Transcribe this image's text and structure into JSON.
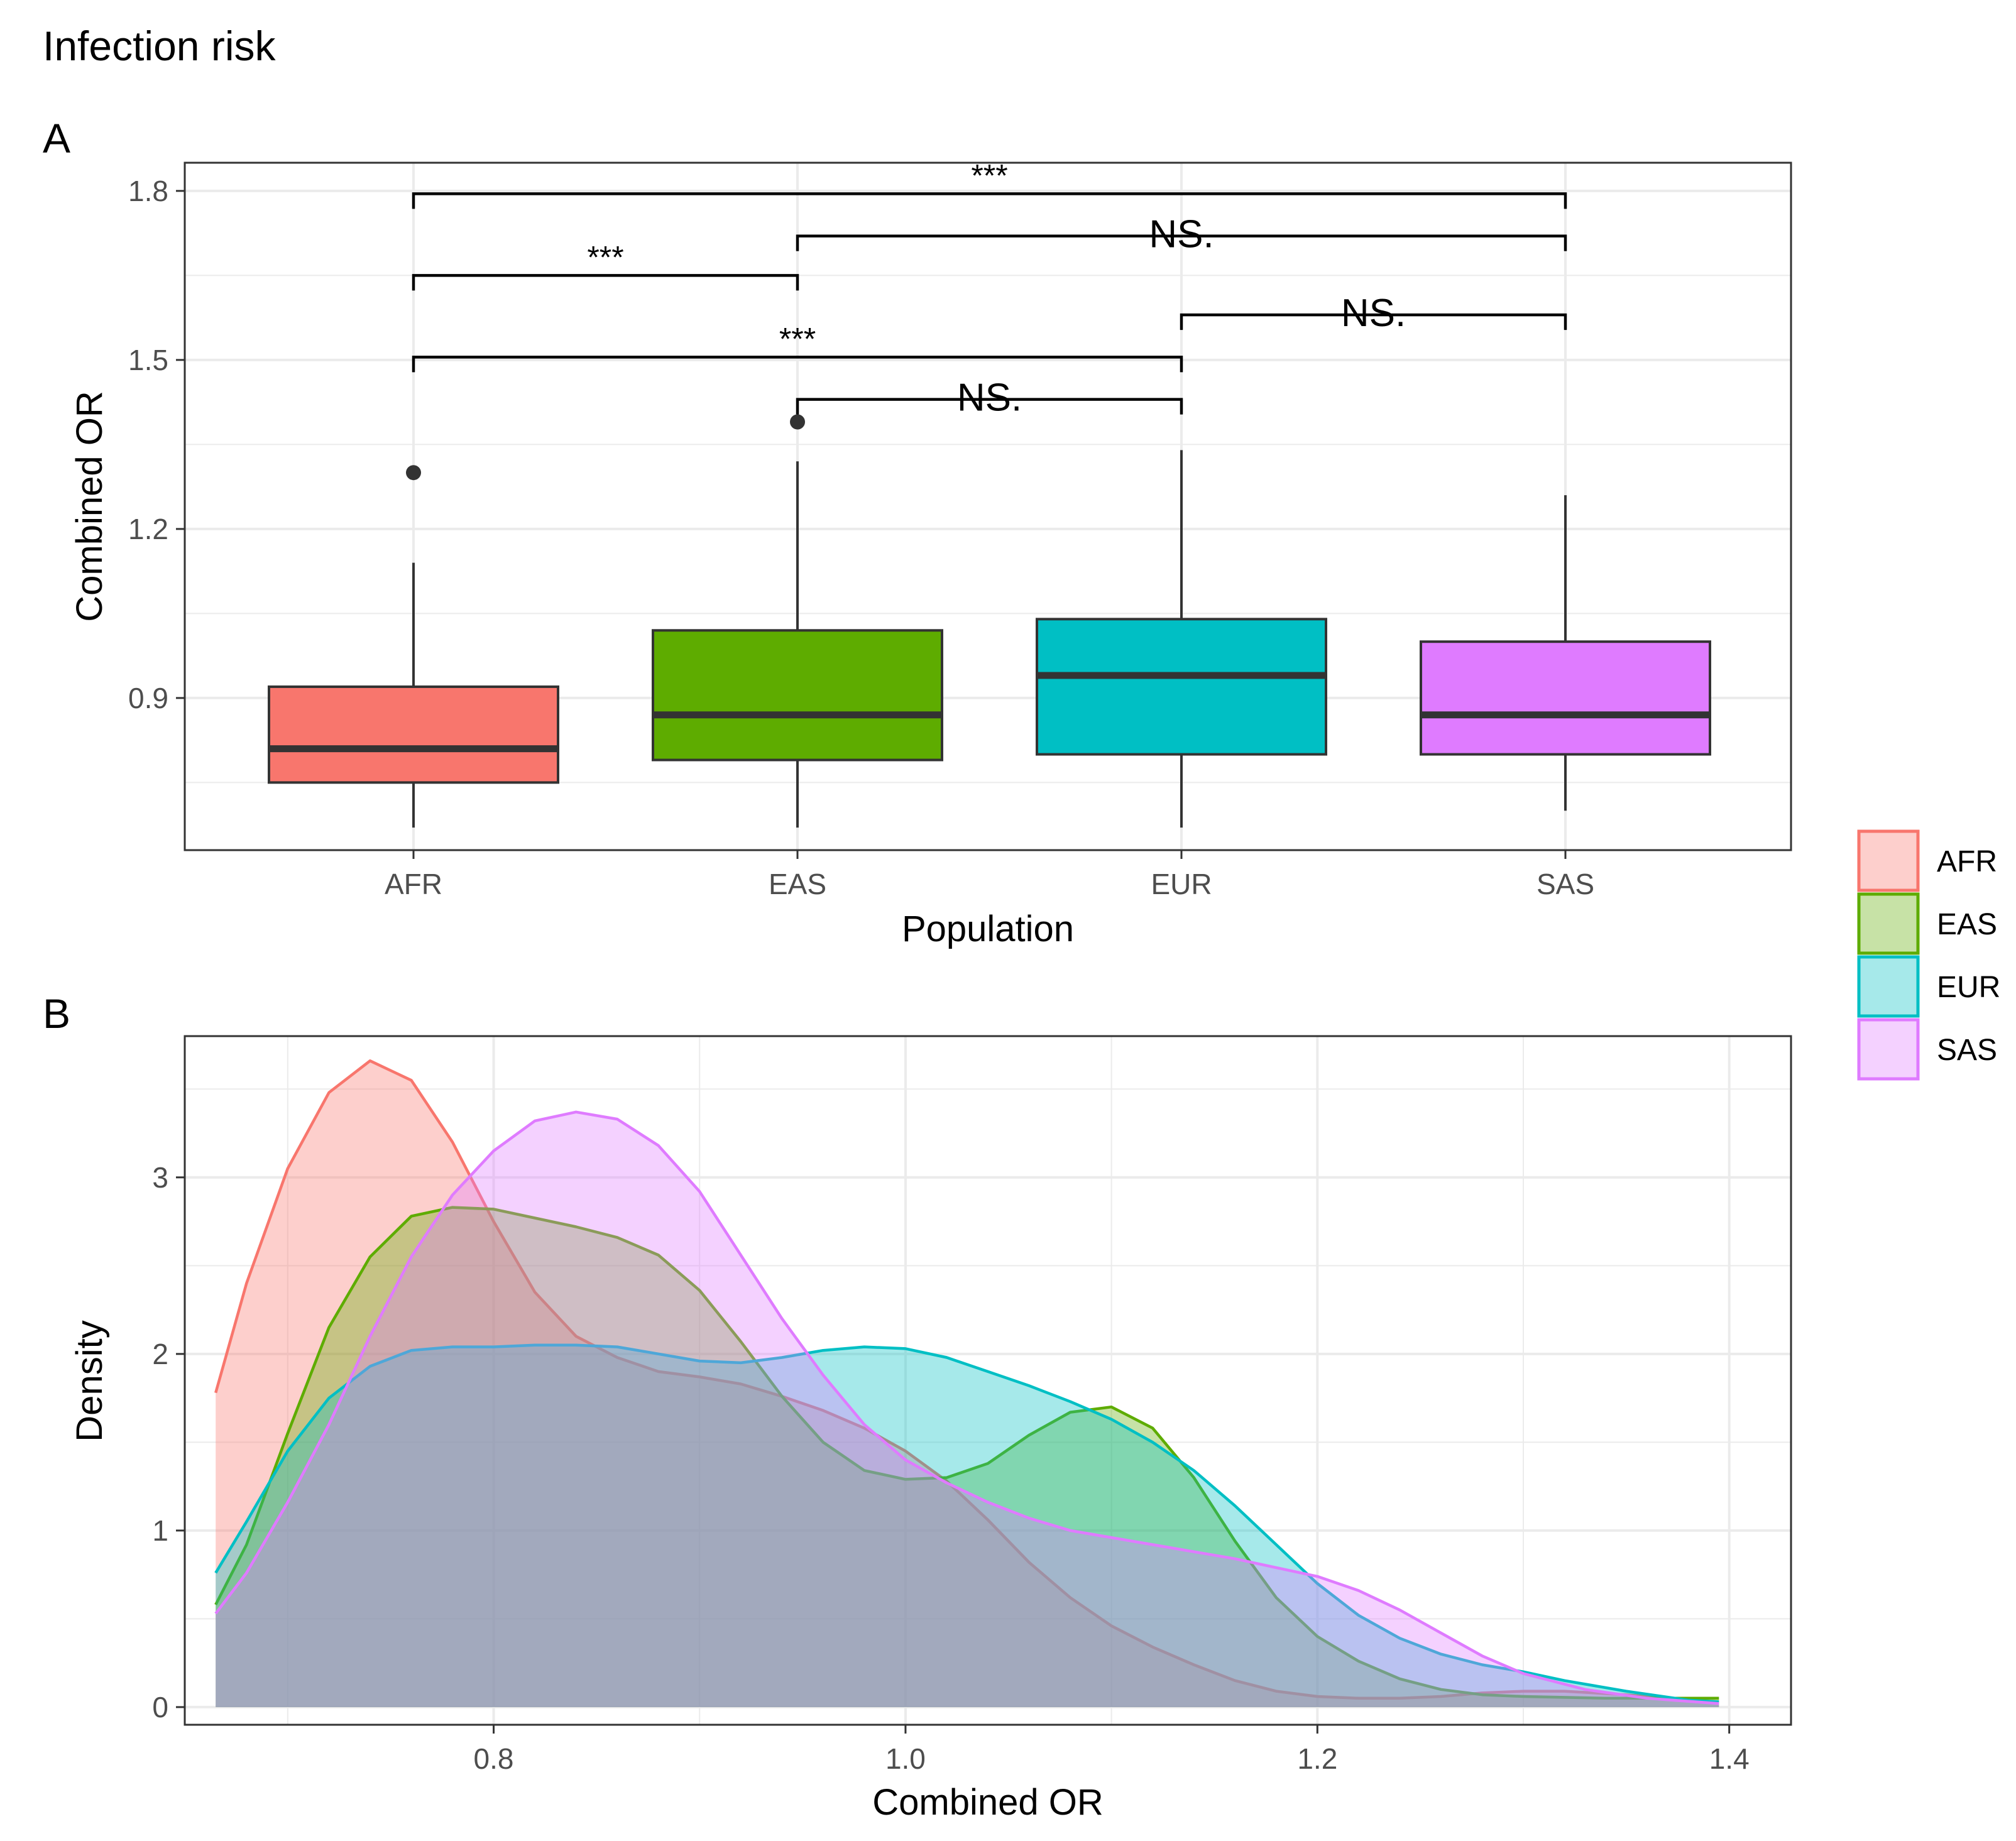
{
  "figure_title": "Infection risk",
  "legend": {
    "items": [
      {
        "label": "AFR",
        "color": "#F8766D"
      },
      {
        "label": "EAS",
        "color": "#5EAC00"
      },
      {
        "label": "EUR",
        "color": "#00BFC4"
      },
      {
        "label": "SAS",
        "color": "#DF7BFF"
      }
    ]
  },
  "chart_data": [
    {
      "panel_label": "A",
      "type": "box",
      "xlabel": "Population",
      "ylabel": "Combined OR",
      "categories": [
        "AFR",
        "EAS",
        "EUR",
        "SAS"
      ],
      "yticks": [
        "0.9",
        "1.2",
        "1.5",
        "1.8"
      ],
      "ylim": [
        0.63,
        1.85
      ],
      "grid": true,
      "boxes": [
        {
          "name": "AFR",
          "color": "#F8766D",
          "whisker_low": 0.67,
          "q1": 0.75,
          "median": 0.81,
          "q3": 0.92,
          "whisker_high": 1.14,
          "outliers": [
            1.3
          ]
        },
        {
          "name": "EAS",
          "color": "#5EAC00",
          "whisker_low": 0.67,
          "q1": 0.79,
          "median": 0.87,
          "q3": 1.02,
          "whisker_high": 1.32,
          "outliers": [
            1.39
          ]
        },
        {
          "name": "EUR",
          "color": "#00BFC4",
          "whisker_low": 0.67,
          "q1": 0.8,
          "median": 0.94,
          "q3": 1.04,
          "whisker_high": 1.34,
          "outliers": []
        },
        {
          "name": "SAS",
          "color": "#DF7BFF",
          "whisker_low": 0.7,
          "q1": 0.8,
          "median": 0.87,
          "q3": 1.0,
          "whisker_high": 1.26,
          "outliers": []
        }
      ],
      "comparisons": [
        {
          "from": "AFR",
          "to": "SAS",
          "y": 1.795,
          "label": "***"
        },
        {
          "from": "EAS",
          "to": "SAS",
          "y": 1.72,
          "label": "NS."
        },
        {
          "from": "AFR",
          "to": "EAS",
          "y": 1.65,
          "label": "***"
        },
        {
          "from": "EUR",
          "to": "SAS",
          "y": 1.58,
          "label": "NS."
        },
        {
          "from": "AFR",
          "to": "EUR",
          "y": 1.505,
          "label": "***"
        },
        {
          "from": "EAS",
          "to": "EUR",
          "y": 1.43,
          "label": "NS."
        }
      ]
    },
    {
      "panel_label": "B",
      "type": "area",
      "xlabel": "Combined OR",
      "ylabel": "Density",
      "xticks": [
        "0.8",
        "1.0",
        "1.2",
        "1.4"
      ],
      "yticks": [
        "0",
        "1",
        "2",
        "3"
      ],
      "xlim": [
        0.65,
        1.43
      ],
      "ylim": [
        -0.1,
        3.8
      ],
      "grid": true,
      "series": [
        {
          "name": "AFR",
          "color": "#F8766D",
          "points": [
            [
              0.665,
              1.78
            ],
            [
              0.68,
              2.4
            ],
            [
              0.7,
              3.05
            ],
            [
              0.72,
              3.48
            ],
            [
              0.74,
              3.66
            ],
            [
              0.76,
              3.55
            ],
            [
              0.78,
              3.2
            ],
            [
              0.8,
              2.75
            ],
            [
              0.82,
              2.35
            ],
            [
              0.84,
              2.1
            ],
            [
              0.86,
              1.98
            ],
            [
              0.88,
              1.9
            ],
            [
              0.9,
              1.87
            ],
            [
              0.92,
              1.83
            ],
            [
              0.94,
              1.76
            ],
            [
              0.96,
              1.68
            ],
            [
              0.98,
              1.58
            ],
            [
              1.0,
              1.45
            ],
            [
              1.02,
              1.28
            ],
            [
              1.04,
              1.06
            ],
            [
              1.06,
              0.82
            ],
            [
              1.08,
              0.62
            ],
            [
              1.1,
              0.46
            ],
            [
              1.12,
              0.34
            ],
            [
              1.14,
              0.24
            ],
            [
              1.16,
              0.15
            ],
            [
              1.18,
              0.09
            ],
            [
              1.2,
              0.06
            ],
            [
              1.22,
              0.05
            ],
            [
              1.24,
              0.05
            ],
            [
              1.26,
              0.06
            ],
            [
              1.28,
              0.08
            ],
            [
              1.3,
              0.09
            ],
            [
              1.32,
              0.09
            ],
            [
              1.35,
              0.07
            ],
            [
              1.38,
              0.04
            ],
            [
              1.395,
              0.03
            ]
          ]
        },
        {
          "name": "EAS",
          "color": "#5EAC00",
          "points": [
            [
              0.665,
              0.58
            ],
            [
              0.68,
              0.92
            ],
            [
              0.7,
              1.55
            ],
            [
              0.72,
              2.15
            ],
            [
              0.74,
              2.55
            ],
            [
              0.76,
              2.78
            ],
            [
              0.78,
              2.83
            ],
            [
              0.8,
              2.82
            ],
            [
              0.82,
              2.77
            ],
            [
              0.84,
              2.72
            ],
            [
              0.86,
              2.66
            ],
            [
              0.88,
              2.56
            ],
            [
              0.9,
              2.36
            ],
            [
              0.92,
              2.07
            ],
            [
              0.94,
              1.76
            ],
            [
              0.96,
              1.5
            ],
            [
              0.98,
              1.34
            ],
            [
              1.0,
              1.29
            ],
            [
              1.02,
              1.3
            ],
            [
              1.04,
              1.38
            ],
            [
              1.06,
              1.54
            ],
            [
              1.08,
              1.67
            ],
            [
              1.1,
              1.7
            ],
            [
              1.12,
              1.58
            ],
            [
              1.14,
              1.3
            ],
            [
              1.16,
              0.94
            ],
            [
              1.18,
              0.62
            ],
            [
              1.2,
              0.4
            ],
            [
              1.22,
              0.26
            ],
            [
              1.24,
              0.16
            ],
            [
              1.26,
              0.1
            ],
            [
              1.28,
              0.07
            ],
            [
              1.3,
              0.06
            ],
            [
              1.34,
              0.05
            ],
            [
              1.395,
              0.05
            ]
          ]
        },
        {
          "name": "EUR",
          "color": "#00BFC4",
          "points": [
            [
              0.665,
              0.76
            ],
            [
              0.68,
              1.05
            ],
            [
              0.7,
              1.45
            ],
            [
              0.72,
              1.75
            ],
            [
              0.74,
              1.93
            ],
            [
              0.76,
              2.02
            ],
            [
              0.78,
              2.04
            ],
            [
              0.8,
              2.04
            ],
            [
              0.82,
              2.05
            ],
            [
              0.84,
              2.05
            ],
            [
              0.86,
              2.04
            ],
            [
              0.88,
              2.0
            ],
            [
              0.9,
              1.96
            ],
            [
              0.92,
              1.95
            ],
            [
              0.94,
              1.98
            ],
            [
              0.96,
              2.02
            ],
            [
              0.98,
              2.04
            ],
            [
              1.0,
              2.03
            ],
            [
              1.02,
              1.98
            ],
            [
              1.04,
              1.9
            ],
            [
              1.06,
              1.82
            ],
            [
              1.08,
              1.73
            ],
            [
              1.1,
              1.63
            ],
            [
              1.12,
              1.5
            ],
            [
              1.14,
              1.34
            ],
            [
              1.16,
              1.14
            ],
            [
              1.18,
              0.92
            ],
            [
              1.2,
              0.7
            ],
            [
              1.22,
              0.52
            ],
            [
              1.24,
              0.39
            ],
            [
              1.26,
              0.3
            ],
            [
              1.28,
              0.24
            ],
            [
              1.3,
              0.2
            ],
            [
              1.32,
              0.15
            ],
            [
              1.35,
              0.09
            ],
            [
              1.38,
              0.04
            ],
            [
              1.395,
              0.03
            ]
          ]
        },
        {
          "name": "SAS",
          "color": "#DF7BFF",
          "points": [
            [
              0.665,
              0.53
            ],
            [
              0.68,
              0.76
            ],
            [
              0.7,
              1.16
            ],
            [
              0.72,
              1.6
            ],
            [
              0.74,
              2.1
            ],
            [
              0.76,
              2.55
            ],
            [
              0.78,
              2.9
            ],
            [
              0.8,
              3.15
            ],
            [
              0.82,
              3.32
            ],
            [
              0.84,
              3.37
            ],
            [
              0.86,
              3.33
            ],
            [
              0.88,
              3.18
            ],
            [
              0.9,
              2.92
            ],
            [
              0.92,
              2.56
            ],
            [
              0.94,
              2.2
            ],
            [
              0.96,
              1.88
            ],
            [
              0.98,
              1.6
            ],
            [
              1.0,
              1.4
            ],
            [
              1.02,
              1.27
            ],
            [
              1.04,
              1.16
            ],
            [
              1.06,
              1.07
            ],
            [
              1.08,
              1.0
            ],
            [
              1.1,
              0.96
            ],
            [
              1.12,
              0.92
            ],
            [
              1.14,
              0.88
            ],
            [
              1.16,
              0.84
            ],
            [
              1.18,
              0.79
            ],
            [
              1.2,
              0.74
            ],
            [
              1.22,
              0.66
            ],
            [
              1.24,
              0.55
            ],
            [
              1.26,
              0.42
            ],
            [
              1.28,
              0.29
            ],
            [
              1.3,
              0.19
            ],
            [
              1.33,
              0.1
            ],
            [
              1.36,
              0.05
            ],
            [
              1.395,
              0.02
            ]
          ]
        }
      ]
    }
  ]
}
